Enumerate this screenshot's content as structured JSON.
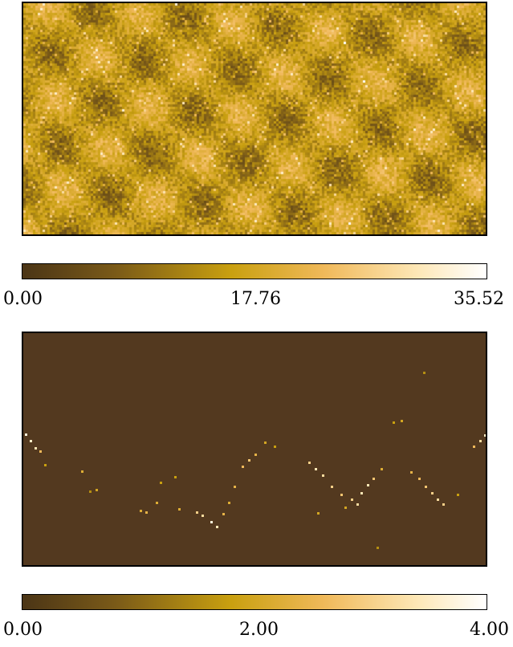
{
  "chart_data": [
    {
      "type": "heatmap",
      "title": "",
      "colormap": [
        "#4b3516",
        "#7a5a18",
        "#c9a010",
        "#f0b95a",
        "#fde7b6",
        "#ffffff"
      ],
      "colorbar": {
        "min": 0.0,
        "max": 35.52,
        "ticks": [
          "0.00",
          "17.76",
          "35.52"
        ]
      }
    },
    {
      "type": "heatmap",
      "title": "",
      "background_value": 0,
      "colormap": [
        "#4b3516",
        "#7a5a18",
        "#c9a010",
        "#f0b95a",
        "#fde7b6",
        "#ffffff"
      ],
      "colorbar": {
        "min": 0.0,
        "max": 4.0,
        "ticks": [
          "0.00",
          "2.00",
          "4.00"
        ]
      }
    }
  ]
}
